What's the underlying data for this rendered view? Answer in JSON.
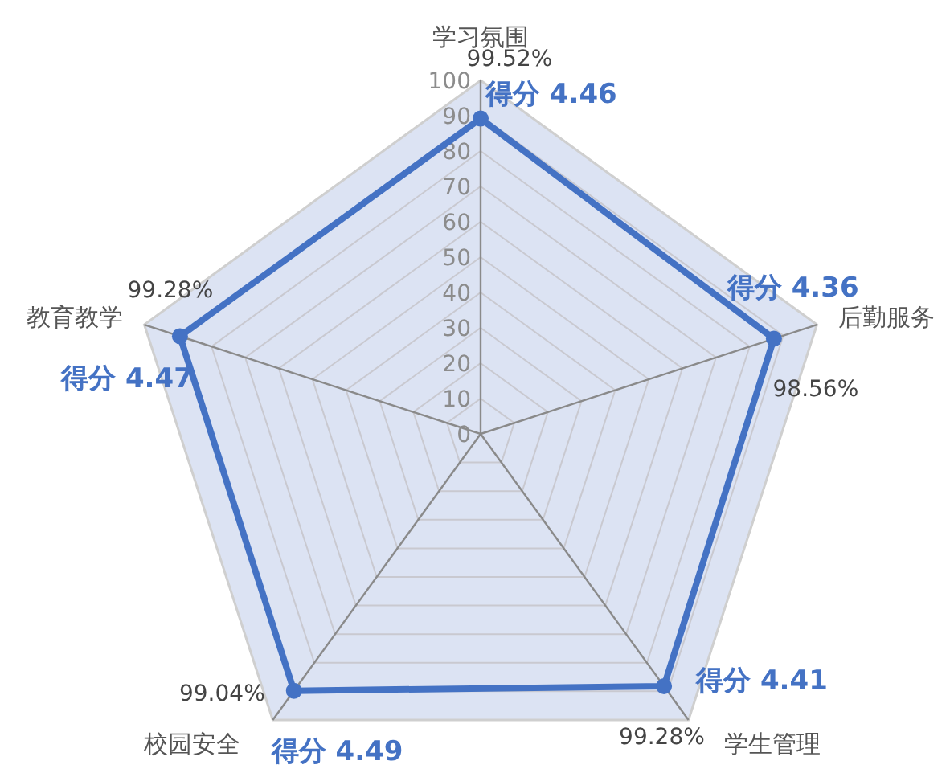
{
  "chart_data": {
    "type": "radar",
    "categories": [
      "学习氛围",
      "后勤服务",
      "学生管理",
      "校园安全",
      "教育教学"
    ],
    "series": [
      {
        "color": "#4472c4",
        "values": [
          89.2,
          87.2,
          88.2,
          89.8,
          89.4
        ]
      }
    ],
    "ylim": [
      0,
      100
    ],
    "yticks": [
      0,
      10,
      20,
      30,
      40,
      50,
      60,
      70,
      80,
      90,
      100
    ],
    "grid": true,
    "marker": "circle",
    "annotations": [
      {
        "text": "99.52%",
        "x": "学习氛围"
      },
      {
        "text": "得分 4.46",
        "x": "学习氛围"
      },
      {
        "text": "98.56%",
        "x": "后勤服务"
      },
      {
        "text": "得分 4.36",
        "x": "后勤服务"
      },
      {
        "text": "99.28%",
        "x": "学生管理"
      },
      {
        "text": "得分 4.41",
        "x": "学生管理"
      },
      {
        "text": "99.04%",
        "x": "校园安全"
      },
      {
        "text": "得分 4.49",
        "x": "校园安全"
      },
      {
        "text": "99.28%",
        "x": "教育教学"
      },
      {
        "text": "得分 4.47",
        "x": "教育教学"
      }
    ]
  }
}
